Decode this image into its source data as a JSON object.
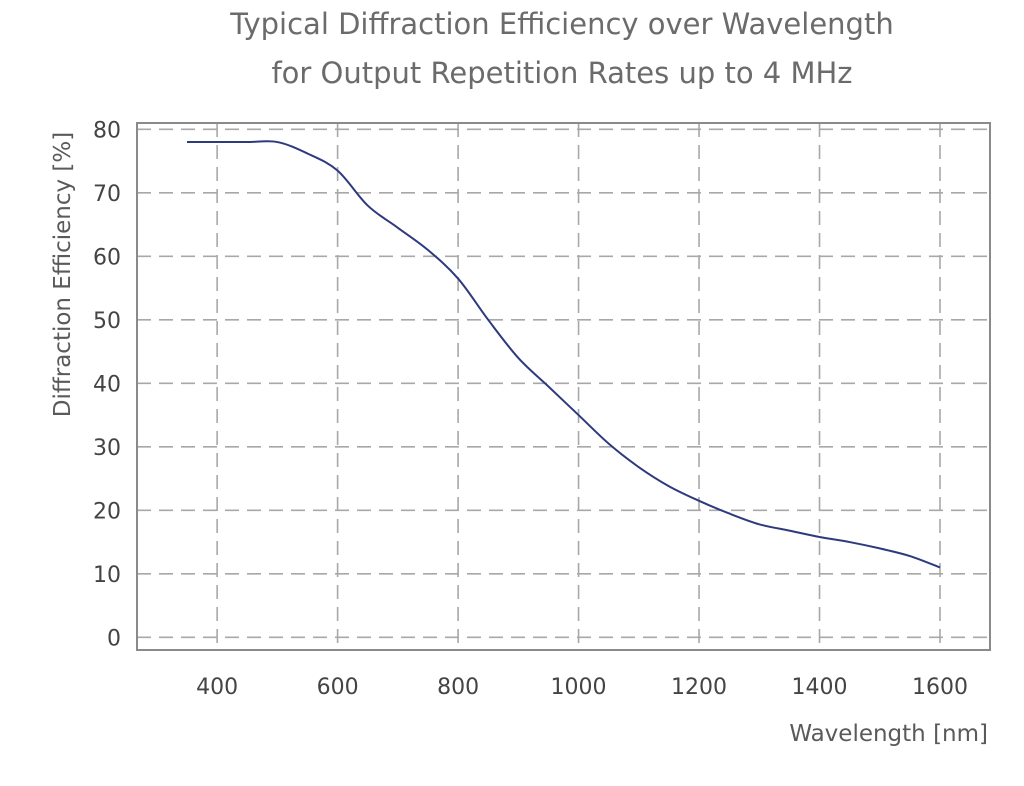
{
  "chart_data": {
    "type": "line",
    "title": [
      "Typical Diffraction Efficiency over Wavelength",
      "for Output Repetition Rates up to 4 MHz"
    ],
    "xlabel": "Wavelength [nm]",
    "ylabel": "Diffraction Efficiency [%]",
    "xlim": [
      267,
      1683
    ],
    "ylim": [
      -2,
      81
    ],
    "xticks": [
      400,
      600,
      800,
      1000,
      1200,
      1400,
      1600
    ],
    "yticks": [
      0,
      10,
      20,
      30,
      40,
      50,
      60,
      70,
      80
    ],
    "grid": true,
    "line_color": "#2e3a7e",
    "series": [
      {
        "x": [
          350,
          400,
          450,
          500,
          550,
          600,
          650,
          700,
          750,
          800,
          850,
          900,
          950,
          1000,
          1050,
          1100,
          1150,
          1200,
          1250,
          1300,
          1350,
          1400,
          1450,
          1500,
          1550,
          1600
        ],
        "y": [
          78,
          78,
          78,
          78,
          76.2,
          73.5,
          68,
          64.5,
          61,
          56.5,
          50,
          44,
          39.5,
          35,
          30.5,
          26.8,
          23.8,
          21.5,
          19.5,
          17.8,
          16.8,
          15.8,
          15,
          14,
          12.8,
          11
        ]
      }
    ]
  }
}
